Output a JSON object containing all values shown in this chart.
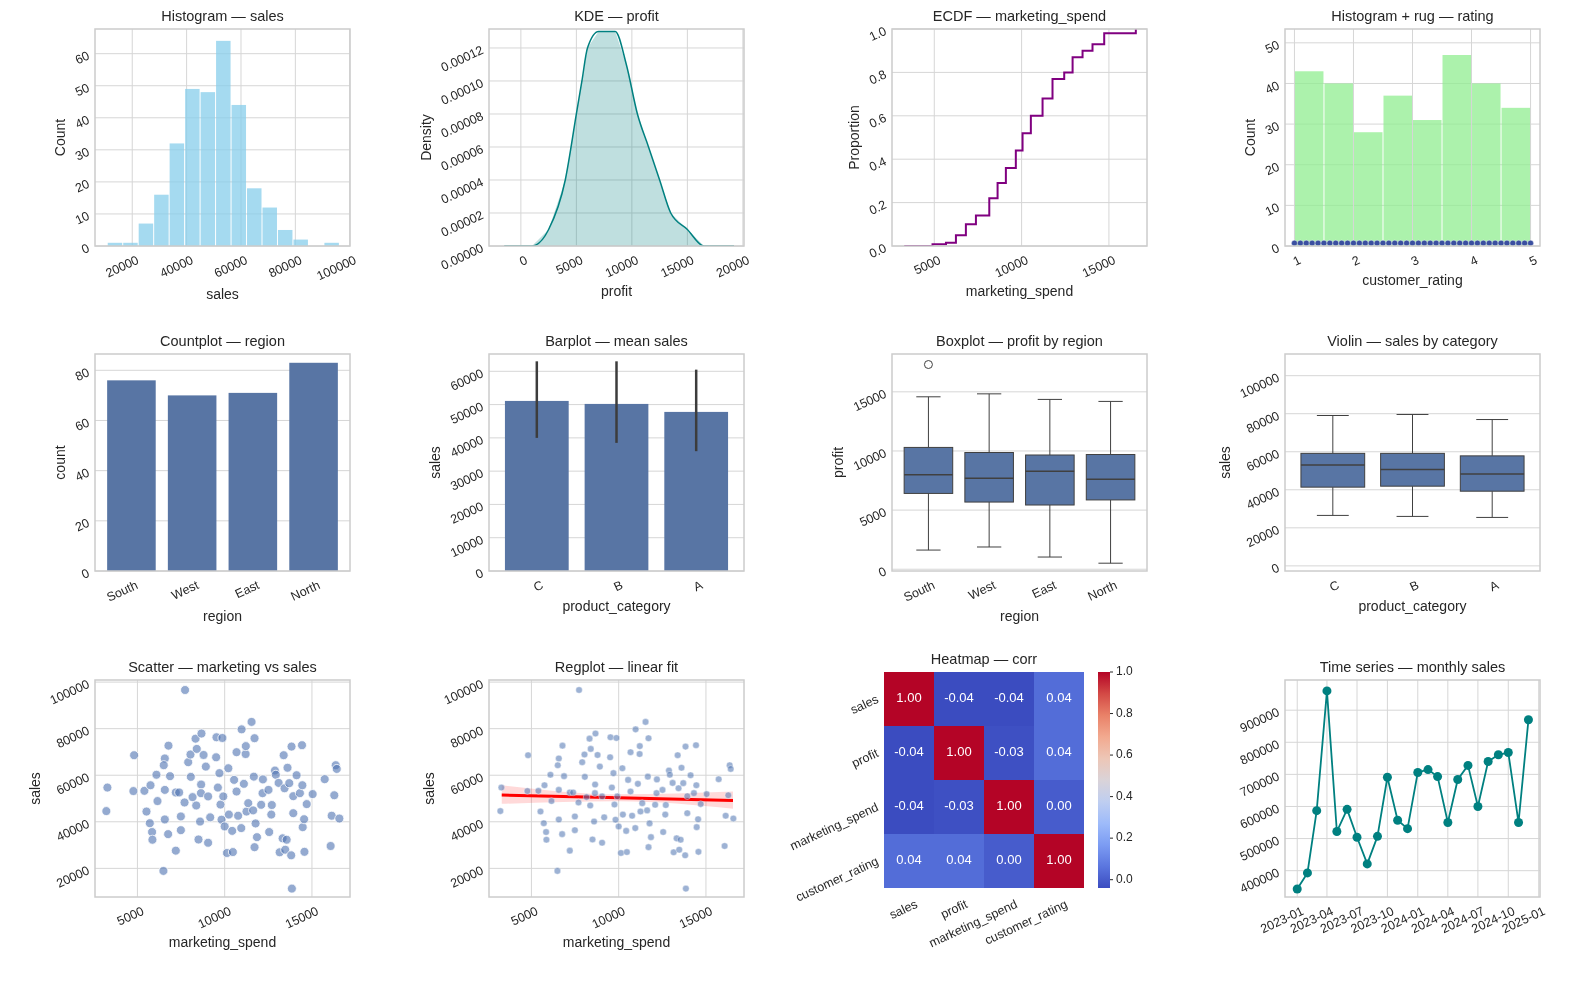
{
  "chart_data": [
    {
      "type": "histogram",
      "title": "Histogram — sales",
      "xlabel": "sales",
      "ylabel": "Count",
      "color": "#87ceeb",
      "bins": [
        10800,
        16493,
        22186,
        27879,
        33572,
        39265,
        44958,
        50651,
        56344,
        62037,
        67730,
        73423,
        79116,
        84809,
        90502,
        96195
      ],
      "values": [
        1,
        1,
        7,
        16,
        32,
        49,
        48,
        64,
        44,
        18,
        12,
        5,
        2,
        0,
        1
      ],
      "xlim": [
        6300,
        100100
      ],
      "xticks": [
        20000,
        40000,
        60000,
        80000,
        100000
      ],
      "ylim": [
        0,
        67.7
      ],
      "yticks": [
        0,
        10,
        20,
        30,
        40,
        50,
        60
      ],
      "grid": true
    },
    {
      "type": "area",
      "title": "KDE — profit",
      "xlabel": "profit",
      "ylabel": "Density",
      "color": "#008080",
      "x": [
        -1500,
        1000,
        2500,
        4000,
        5000,
        5500,
        6000,
        7000,
        7800,
        8500,
        9500,
        10500,
        11500,
        12500,
        13500,
        15000,
        16500,
        18500,
        19200
      ],
      "values": [
        0,
        0,
        1e-05,
        4e-05,
        8e-05,
        0.0001,
        0.00012,
        0.00013,
        0.00013,
        0.00013,
        0.00011,
        8e-05,
        6e-05,
        4e-05,
        2e-05,
        1e-05,
        0,
        0,
        0
      ],
      "xlim": [
        -2870,
        20100
      ],
      "xticks": [
        0,
        5000,
        10000,
        15000,
        20000
      ],
      "ylim": [
        0,
        0.0001315
      ],
      "yticks": [
        {
          "value": 0,
          "label": "0.00000"
        },
        {
          "value": 2e-05,
          "label": "0.00002"
        },
        {
          "value": 4e-05,
          "label": "0.00004"
        },
        {
          "value": 6e-05,
          "label": "0.00006"
        },
        {
          "value": 8e-05,
          "label": "0.00008"
        },
        {
          "value": 0.0001,
          "label": "0.00010"
        },
        {
          "value": 0.00012,
          "label": "0.00012"
        }
      ],
      "grid": true
    },
    {
      "type": "step",
      "title": "ECDF — marketing_spend",
      "xlabel": "marketing_spend",
      "ylabel": "Proportion",
      "color": "#800080",
      "x": [
        3280,
        4900,
        5670,
        6240,
        6810,
        7385,
        8150,
        8625,
        9100,
        9670,
        10055,
        10530,
        11200,
        11770,
        12440,
        12920,
        13490,
        14060,
        14730,
        15780,
        16540
      ],
      "values": [
        0,
        0.008,
        0.015,
        0.05,
        0.1,
        0.14,
        0.22,
        0.29,
        0.36,
        0.44,
        0.52,
        0.6,
        0.68,
        0.77,
        0.8,
        0.87,
        0.9,
        0.93,
        0.98,
        0.98,
        1
      ],
      "xlim": [
        2580,
        17180
      ],
      "xticks": [
        5000,
        10000,
        15000
      ],
      "ylim": [
        0,
        1
      ],
      "yticks": [
        {
          "value": 0,
          "label": "0.0"
        },
        {
          "value": 0.2,
          "label": "0.2"
        },
        {
          "value": 0.4,
          "label": "0.4"
        },
        {
          "value": 0.6,
          "label": "0.6"
        },
        {
          "value": 0.8,
          "label": "0.8"
        },
        {
          "value": 1,
          "label": "1.0"
        }
      ],
      "grid": true
    },
    {
      "type": "histogram",
      "title": "Histogram + rug — rating",
      "xlabel": "customer_rating",
      "ylabel": "Count",
      "color": "#90ee90",
      "bins": [
        1,
        1.5,
        2,
        2.5,
        3,
        3.5,
        4,
        4.5,
        5
      ],
      "values": [
        43,
        40,
        28,
        37,
        31,
        47,
        40,
        34
      ],
      "series": [
        {
          "type": "scatter",
          "color": "#3a4fa0",
          "x": [
            1,
            1.1,
            1.2,
            1.3,
            1.4,
            1.5,
            1.6,
            1.7,
            1.8,
            1.9,
            2,
            2.1,
            2.2,
            2.3,
            2.4,
            2.5,
            2.6,
            2.7,
            2.8,
            2.9,
            3,
            3.1,
            3.2,
            3.3,
            3.4,
            3.5,
            3.6,
            3.7,
            3.8,
            3.9,
            4,
            4.1,
            4.2,
            4.3,
            4.4,
            4.5,
            4.6,
            4.7,
            4.8,
            4.9,
            5
          ],
          "values": [
            0.7,
            0.7,
            0.7,
            0.7,
            0.7,
            0.7,
            0.7,
            0.7,
            0.7,
            0.7,
            0.7,
            0.7,
            0.7,
            0.7,
            0.7,
            0.7,
            0.7,
            0.7,
            0.7,
            0.7,
            0.7,
            0.7,
            0.7,
            0.7,
            0.7,
            0.7,
            0.7,
            0.7,
            0.7,
            0.7,
            0.7,
            0.7,
            0.7,
            0.7,
            0.7,
            0.7,
            0.7,
            0.7,
            0.7,
            0.7,
            0.7
          ]
        }
      ],
      "xlim": [
        0.84,
        5.16
      ],
      "xticks": [
        1,
        2,
        3,
        4,
        5
      ],
      "ylim": [
        0,
        53.4
      ],
      "yticks": [
        0,
        10,
        20,
        30,
        40,
        50
      ],
      "grid": true
    },
    {
      "type": "bar",
      "title": "Countplot — region",
      "xlabel": "region",
      "ylabel": "count",
      "color": "#5875a4",
      "categories": [
        "South",
        "West",
        "East",
        "North"
      ],
      "values": [
        76,
        70,
        71,
        83
      ],
      "ylim": [
        0,
        86.5
      ],
      "yticks": [
        0,
        20,
        40,
        60,
        80
      ],
      "grid": "y"
    },
    {
      "type": "bar",
      "title": "Barplot — mean sales",
      "xlabel": "product_category",
      "ylabel": "sales",
      "color": "#5875a4",
      "categories": [
        "C",
        "B",
        "A"
      ],
      "values": [
        51100,
        50200,
        47800
      ],
      "errors": [
        [
          40000,
          63000
        ],
        [
          38500,
          63000
        ],
        [
          36000,
          60500
        ]
      ],
      "ylim": [
        0,
        65200
      ],
      "yticks": [
        0,
        10000,
        20000,
        30000,
        40000,
        50000,
        60000
      ],
      "grid": "y"
    },
    {
      "type": "box",
      "title": "Boxplot — profit by region",
      "xlabel": "region",
      "ylabel": "profit",
      "color": "#5875a4",
      "categories": [
        "South",
        "West",
        "East",
        "North"
      ],
      "boxes": [
        {
          "low": 1620,
          "q1": 6410,
          "median": 7990,
          "q3": 10300,
          "high": 14580,
          "outliers": [
            17310
          ]
        },
        {
          "low": 1880,
          "q1": 5680,
          "median": 7690,
          "q3": 9870,
          "high": 14830
        },
        {
          "low": 1030,
          "q1": 5430,
          "median": 8290,
          "q3": 9660,
          "high": 14360
        },
        {
          "low": 510,
          "q1": 5860,
          "median": 7610,
          "q3": 9700,
          "high": 14190
        }
      ],
      "ylim": [
        -150,
        18200
      ],
      "yticks": [
        0,
        5000,
        10000,
        15000
      ],
      "grid": "y"
    },
    {
      "type": "box",
      "title": "Violin — sales by category",
      "xlabel": "product_category",
      "ylabel": "sales",
      "color": "#5875a4",
      "categories": [
        "C",
        "B",
        "A"
      ],
      "boxes": [
        {
          "low": 26530,
          "q1": 41390,
          "median": 53060,
          "q3": 59160,
          "high": 79060
        },
        {
          "low": 26000,
          "q1": 41900,
          "median": 50670,
          "q3": 59160,
          "high": 79600
        },
        {
          "low": 25470,
          "q1": 39260,
          "median": 48290,
          "q3": 57840,
          "high": 76940
        }
      ],
      "ylim": [
        -2700,
        111400
      ],
      "yticks": [
        0,
        20000,
        40000,
        60000,
        80000,
        100000
      ],
      "grid": "y"
    },
    {
      "type": "scatter",
      "title": "Scatter — marketing vs sales",
      "xlabel": "marketing_spend",
      "ylabel": "sales",
      "color": "#4c72b0",
      "x": [
        3280,
        3220,
        4810,
        4770,
        5400,
        5750,
        5520,
        5710,
        5840,
        5860,
        6090,
        6150,
        6490,
        6780,
        6570,
        6510,
        6570,
        6570,
        6760,
        6870,
        7200,
        7200,
        7490,
        7390,
        7490,
        7730,
        7700,
        7910,
        8060,
        8160,
        8040,
        8330,
        8400,
        8370,
        8500,
        8670,
        8790,
        8650,
        8640,
        8590,
        8920,
        9050,
        9050,
        9170,
        9510,
        9530,
        9610,
        9700,
        9760,
        9820,
        9870,
        9920,
        10000,
        10130,
        10210,
        10240,
        10430,
        10470,
        10540,
        10680,
        10680,
        10770,
        10950,
        10970,
        11100,
        11200,
        11210,
        11250,
        11350,
        11540,
        11710,
        11670,
        11630,
        11770,
        11850,
        11710,
        12090,
        12190,
        12170,
        12510,
        12550,
        12670,
        12700,
        12880,
        12930,
        13090,
        13150,
        13320,
        13380,
        13430,
        13470,
        13550,
        13600,
        13700,
        13830,
        13850,
        13810,
        13930,
        13930,
        14120,
        14310,
        14430,
        14450,
        14470,
        14550,
        14570,
        14700,
        15040,
        15730,
        16130,
        16070,
        16280,
        16360,
        16420,
        16570
      ],
      "values": [
        54700,
        44600,
        68600,
        53200,
        53300,
        55700,
        44400,
        39400,
        35600,
        32300,
        60200,
        48900,
        18900,
        72700,
        67200,
        64300,
        53700,
        41000,
        34700,
        59600,
        27600,
        52600,
        42300,
        52600,
        36400,
        96600,
        48300,
        65600,
        59300,
        50600,
        68900,
        75700,
        71300,
        47000,
        32400,
        77900,
        68700,
        56000,
        52300,
        40100,
        63700,
        31000,
        50900,
        41900,
        67700,
        76300,
        54700,
        60900,
        47400,
        40900,
        76000,
        50900,
        38000,
        26600,
        63000,
        43100,
        36100,
        27000,
        58000,
        53000,
        69900,
        42600,
        37300,
        79700,
        56300,
        69100,
        72500,
        44400,
        48000,
        82900,
        75900,
        59400,
        44900,
        39300,
        33400,
        29100,
        47300,
        58200,
        52300,
        53700,
        35600,
        43100,
        47200,
        62000,
        60200,
        56700,
        26900,
        32900,
        68600,
        54400,
        28000,
        32300,
        63200,
        56600,
        72300,
        11300,
        25600,
        43700,
        51000,
        60000,
        52300,
        72900,
        55700,
        37700,
        41100,
        27100,
        47600,
        51900,
        58300,
        42600,
        29600,
        51400,
        64300,
        62700,
        41400
      ],
      "xlim": [
        2570,
        17180
      ],
      "xticks": [
        5000,
        10000,
        15000
      ],
      "ylim": [
        7700,
        100900
      ],
      "yticks": [
        20000,
        40000,
        60000,
        80000,
        100000
      ],
      "grid": true
    },
    {
      "type": "scatter",
      "title": "Regplot — linear fit",
      "xlabel": "marketing_spend",
      "ylabel": "sales",
      "series": [
        {
          "type": "scatter",
          "color": "#4c72b0",
          "x": [
            3280,
            3220,
            4810,
            4770,
            5400,
            5750,
            5520,
            5710,
            5840,
            5860,
            6090,
            6150,
            6490,
            6780,
            6570,
            6510,
            6570,
            6570,
            6760,
            6870,
            7200,
            7200,
            7490,
            7390,
            7490,
            7730,
            7700,
            7910,
            8060,
            8160,
            8040,
            8330,
            8400,
            8370,
            8500,
            8670,
            8790,
            8650,
            8640,
            8590,
            8920,
            9050,
            9050,
            9170,
            9510,
            9530,
            9610,
            9700,
            9760,
            9820,
            9870,
            9920,
            10000,
            10130,
            10210,
            10240,
            10430,
            10470,
            10540,
            10680,
            10680,
            10770,
            10950,
            10970,
            11100,
            11200,
            11210,
            11250,
            11350,
            11540,
            11710,
            11670,
            11630,
            11770,
            11850,
            11710,
            12090,
            12190,
            12170,
            12510,
            12550,
            12670,
            12700,
            12880,
            12930,
            13090,
            13150,
            13320,
            13380,
            13430,
            13470,
            13550,
            13600,
            13700,
            13830,
            13850,
            13810,
            13930,
            13930,
            14120,
            14310,
            14430,
            14450,
            14470,
            14550,
            14570,
            14700,
            15040,
            15730,
            16130,
            16070,
            16280,
            16360,
            16420,
            16570
          ],
          "values": [
            54700,
            44600,
            68600,
            53200,
            53300,
            55700,
            44400,
            39400,
            35600,
            32300,
            60200,
            48900,
            18900,
            72700,
            67200,
            64300,
            53700,
            41000,
            34700,
            59600,
            27600,
            52600,
            42300,
            52600,
            36400,
            96600,
            48300,
            65600,
            59300,
            50600,
            68900,
            75700,
            71300,
            47000,
            32400,
            77900,
            68700,
            56000,
            52300,
            40100,
            63700,
            31000,
            50900,
            41900,
            67700,
            76300,
            54700,
            60900,
            47400,
            40900,
            76000,
            50900,
            38000,
            26600,
            63000,
            43100,
            36100,
            27000,
            58000,
            53000,
            69900,
            42600,
            37300,
            79700,
            56300,
            69100,
            72500,
            44400,
            48000,
            82900,
            75900,
            59400,
            44900,
            39300,
            33400,
            29100,
            47300,
            58200,
            52300,
            53700,
            35600,
            43100,
            47200,
            62000,
            60200,
            56700,
            26900,
            32900,
            68600,
            54400,
            28000,
            32300,
            63200,
            56600,
            72300,
            11300,
            25600,
            43700,
            51000,
            60000,
            52300,
            72900,
            55700,
            37700,
            41100,
            27100,
            47600,
            51900,
            58300,
            42600,
            29600,
            51400,
            64300,
            62700,
            41400
          ]
        },
        {
          "type": "line",
          "color": "#ff0000",
          "x": [
            3300,
            10000,
            16550
          ],
          "values": [
            51500,
            50300,
            49100
          ],
          "lower": [
            47700,
            48800,
            45600
          ],
          "upper": [
            55700,
            51800,
            53000
          ]
        }
      ],
      "xlim": [
        2570,
        17180
      ],
      "xticks": [
        5000,
        10000,
        15000
      ],
      "ylim": [
        7700,
        100900
      ],
      "yticks": [
        20000,
        40000,
        60000,
        80000,
        100000
      ],
      "grid": true
    },
    {
      "type": "heatmap",
      "title": "Heatmap — corr",
      "categories": [
        "sales",
        "profit",
        "marketing_spend",
        "customer_rating"
      ],
      "y_categories": [
        "sales",
        "profit",
        "marketing_spend",
        "customer_rating"
      ],
      "cells": [
        [
          1,
          -0.04,
          -0.04,
          0.04
        ],
        [
          -0.04,
          1,
          -0.03,
          0.04
        ],
        [
          -0.04,
          -0.03,
          1,
          0
        ],
        [
          0.04,
          0.04,
          0,
          1
        ]
      ],
      "cell_labels": [
        [
          "1.00",
          "-0.04",
          "-0.04",
          "0.04"
        ],
        [
          "-0.04",
          "1.00",
          "-0.03",
          "0.04"
        ],
        [
          "-0.04",
          "-0.03",
          "1.00",
          "0.00"
        ],
        [
          "0.04",
          "0.04",
          "0.00",
          "1.00"
        ]
      ],
      "clim": [
        -0.04,
        1
      ],
      "cticks": [
        {
          "value": 0,
          "label": "0.0"
        },
        {
          "value": 0.2,
          "label": "0.2"
        },
        {
          "value": 0.4,
          "label": "0.4"
        },
        {
          "value": 0.6,
          "label": "0.6"
        },
        {
          "value": 0.8,
          "label": "0.8"
        },
        {
          "value": 1,
          "label": "1.0"
        }
      ]
    },
    {
      "type": "line",
      "title": "Time series — monthly sales",
      "color": "#008080",
      "marker": "circle",
      "x": [
        "2023-01",
        "2023-02",
        "2023-03",
        "2023-04",
        "2023-05",
        "2023-06",
        "2023-07",
        "2023-08",
        "2023-09",
        "2023-10",
        "2023-11",
        "2023-12",
        "2024-01",
        "2024-02",
        "2024-03",
        "2024-04",
        "2024-05",
        "2024-06",
        "2024-07",
        "2024-08",
        "2024-09",
        "2024-10",
        "2024-11",
        "2024-12"
      ],
      "values": [
        343000,
        393000,
        587000,
        960000,
        522000,
        591000,
        504000,
        421000,
        507000,
        691000,
        557000,
        531000,
        706000,
        715000,
        693000,
        550000,
        684000,
        728000,
        600000,
        740000,
        761000,
        768000,
        550000,
        870000
      ],
      "xlim": [
        "2022-11-25",
        "2025-01-05"
      ],
      "xticks": [
        "2023-01",
        "2023-04",
        "2023-07",
        "2023-10",
        "2024-01",
        "2024-04",
        "2024-07",
        "2024-10",
        "2025-01"
      ],
      "ylim": [
        318000,
        994000
      ],
      "yticks": [
        400000,
        500000,
        600000,
        700000,
        800000,
        900000
      ],
      "grid": true
    }
  ]
}
